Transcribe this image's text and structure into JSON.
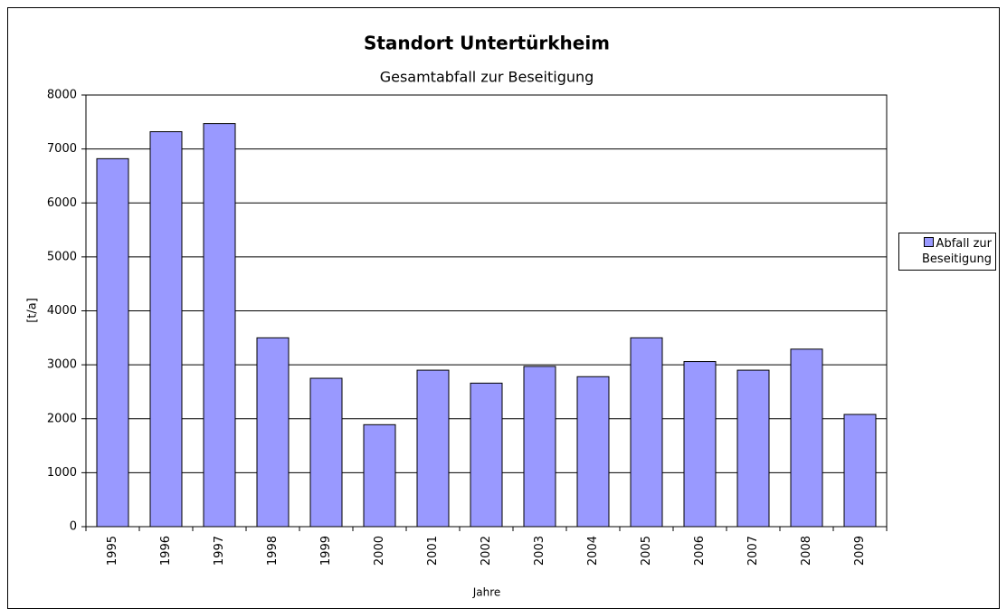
{
  "chart_data": {
    "type": "bar",
    "title": "Standort Untertürkheim",
    "subtitle": "Gesamtabfall zur Beseitigung",
    "x_label": "Jahre",
    "y_label": "[t/a]",
    "categories": [
      "1995",
      "1996",
      "1997",
      "1998",
      "1999",
      "2000",
      "2001",
      "2002",
      "2003",
      "2004",
      "2005",
      "2006",
      "2007",
      "2008",
      "2009"
    ],
    "series": [
      {
        "name": "Abfall zur Beseitigung",
        "color": "#9999ff",
        "values": [
          6820,
          7320,
          7470,
          3500,
          2750,
          1890,
          2900,
          2660,
          2970,
          2780,
          3500,
          3060,
          2900,
          3290,
          2080
        ]
      }
    ],
    "ylim": [
      0,
      8000
    ],
    "yticks": [
      0,
      1000,
      2000,
      3000,
      4000,
      5000,
      6000,
      7000,
      8000
    ],
    "grid": true,
    "legend": "right"
  }
}
